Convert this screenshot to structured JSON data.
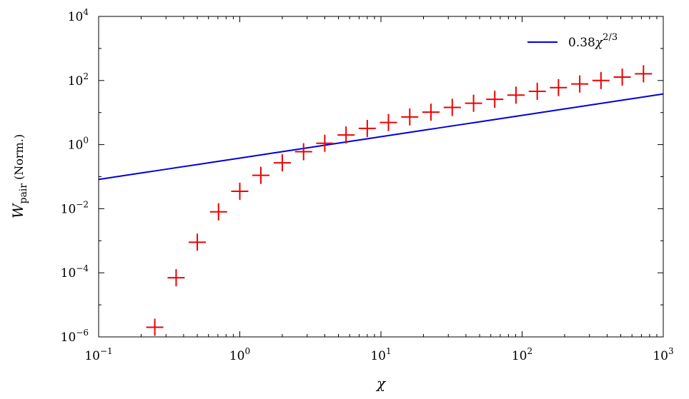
{
  "chart_data": {
    "type": "scatter",
    "xscale": "log",
    "yscale": "log",
    "xlim": [
      0.1,
      1000
    ],
    "ylim": [
      1e-06,
      10000
    ],
    "xlabel": {
      "base": "χ"
    },
    "ylabel": {
      "base": "W",
      "subscript": "pair",
      "suffix": " (Norm.)"
    },
    "grid": false,
    "legend_position": "top-right",
    "x_ticks": [
      {
        "base": "10",
        "exp": "−1",
        "value": 0.1
      },
      {
        "base": "10",
        "exp": "0",
        "value": 1
      },
      {
        "base": "10",
        "exp": "1",
        "value": 10
      },
      {
        "base": "10",
        "exp": "2",
        "value": 100
      },
      {
        "base": "10",
        "exp": "3",
        "value": 1000
      }
    ],
    "y_ticks": [
      {
        "base": "10",
        "exp": "−6",
        "value": 1e-06
      },
      {
        "base": "10",
        "exp": "−4",
        "value": 0.0001
      },
      {
        "base": "10",
        "exp": "−2",
        "value": 0.01
      },
      {
        "base": "10",
        "exp": "0",
        "value": 1
      },
      {
        "base": "10",
        "exp": "2",
        "value": 100
      },
      {
        "base": "10",
        "exp": "4",
        "value": 10000
      }
    ],
    "series": [
      {
        "kind": "markers",
        "marker": "plus",
        "color": "#ee0000",
        "points": [
          {
            "x": 0.25,
            "y": 2e-06
          },
          {
            "x": 0.354,
            "y": 7e-05
          },
          {
            "x": 0.5,
            "y": 0.0009
          },
          {
            "x": 0.707,
            "y": 0.008
          },
          {
            "x": 1.0,
            "y": 0.035
          },
          {
            "x": 1.41,
            "y": 0.11
          },
          {
            "x": 2.0,
            "y": 0.27
          },
          {
            "x": 2.83,
            "y": 0.6
          },
          {
            "x": 4.0,
            "y": 1.1
          },
          {
            "x": 5.66,
            "y": 2.0
          },
          {
            "x": 8.0,
            "y": 3.2
          },
          {
            "x": 11.3,
            "y": 4.9
          },
          {
            "x": 16.0,
            "y": 7.3
          },
          {
            "x": 22.6,
            "y": 10.3
          },
          {
            "x": 32.0,
            "y": 14.5
          },
          {
            "x": 45.3,
            "y": 19.5
          },
          {
            "x": 64.0,
            "y": 26
          },
          {
            "x": 90.5,
            "y": 35
          },
          {
            "x": 128,
            "y": 46
          },
          {
            "x": 181,
            "y": 60
          },
          {
            "x": 256,
            "y": 78
          },
          {
            "x": 362,
            "y": 100
          },
          {
            "x": 512,
            "y": 128
          },
          {
            "x": 724,
            "y": 162
          }
        ]
      },
      {
        "kind": "line",
        "name_coef": "0.38",
        "name_base": "χ",
        "name_exp": "2/3",
        "color": "#0000dd",
        "coefficient": 0.38,
        "exponent": 0.6667,
        "x_range": [
          0.1,
          1000
        ]
      }
    ]
  }
}
